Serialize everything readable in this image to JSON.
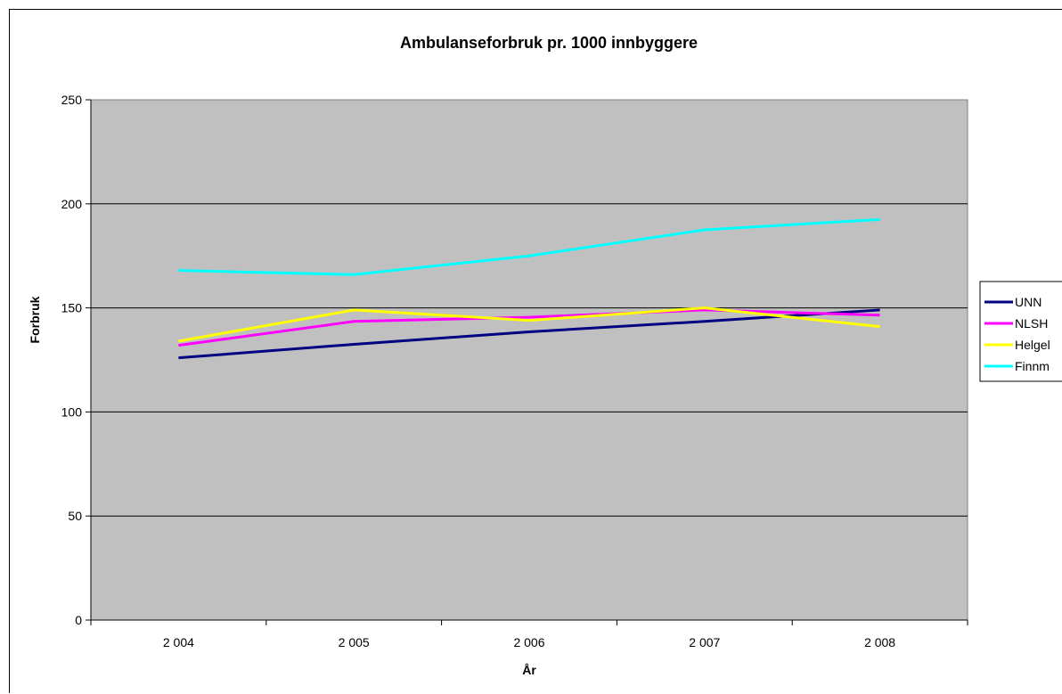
{
  "chart_data": {
    "type": "line",
    "title": "Ambulanseforbruk pr. 1000 innbyggere",
    "xlabel": "År",
    "ylabel": "Forbruk",
    "categories": [
      "2 004",
      "2 005",
      "2 006",
      "2 007",
      "2 008"
    ],
    "ylim": [
      0,
      250
    ],
    "yticks": [
      "0",
      "50",
      "100",
      "150",
      "200",
      "250"
    ],
    "grid": true,
    "legend_position": "right",
    "plot_background": "#c0c0c0",
    "series": [
      {
        "name": "UNN",
        "color": "#000080",
        "values": [
          126,
          132.5,
          138.5,
          143.5,
          149
        ]
      },
      {
        "name": "NLSH",
        "color": "#ff00ff",
        "values": [
          132,
          143.5,
          145.5,
          149,
          146.5
        ]
      },
      {
        "name": "Helgel",
        "color": "#ffff00",
        "values": [
          134,
          149,
          144,
          150,
          141
        ]
      },
      {
        "name": "Finnm",
        "color": "#00ffff",
        "values": [
          168,
          166,
          175,
          187.5,
          192.5
        ]
      }
    ]
  }
}
